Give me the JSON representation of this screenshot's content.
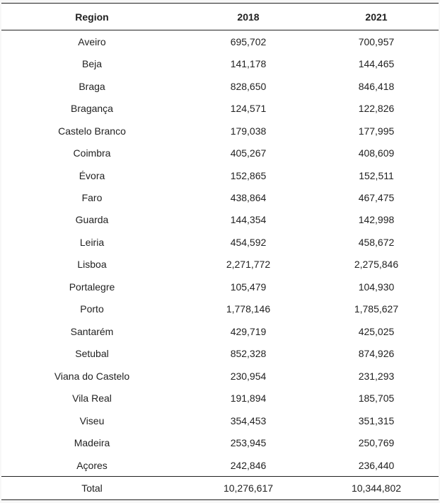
{
  "table": {
    "headers": [
      "Region",
      "2018",
      "2021"
    ],
    "rows": [
      [
        "Aveiro",
        "695,702",
        "700,957"
      ],
      [
        "Beja",
        "141,178",
        "144,465"
      ],
      [
        "Braga",
        "828,650",
        "846,418"
      ],
      [
        "Bragança",
        "124,571",
        "122,826"
      ],
      [
        "Castelo Branco",
        "179,038",
        "177,995"
      ],
      [
        "Coimbra",
        "405,267",
        "408,609"
      ],
      [
        "Évora",
        "152,865",
        "152,511"
      ],
      [
        "Faro",
        "438,864",
        "467,475"
      ],
      [
        "Guarda",
        "144,354",
        "142,998"
      ],
      [
        "Leiria",
        "454,592",
        "458,672"
      ],
      [
        "Lisboa",
        "2,271,772",
        "2,275,846"
      ],
      [
        "Portalegre",
        "105,479",
        "104,930"
      ],
      [
        "Porto",
        "1,778,146",
        "1,785,627"
      ],
      [
        "Santarém",
        "429,719",
        "425,025"
      ],
      [
        "Setubal",
        "852,328",
        "874,926"
      ],
      [
        "Viana do Castelo",
        "230,954",
        "231,293"
      ],
      [
        "Vila Real",
        "191,894",
        "185,705"
      ],
      [
        "Viseu",
        "354,453",
        "351,315"
      ],
      [
        "Madeira",
        "253,945",
        "250,769"
      ],
      [
        "Açores",
        "242,846",
        "236,440"
      ]
    ],
    "total": [
      "Total",
      "10,276,617",
      "10,344,802"
    ]
  }
}
